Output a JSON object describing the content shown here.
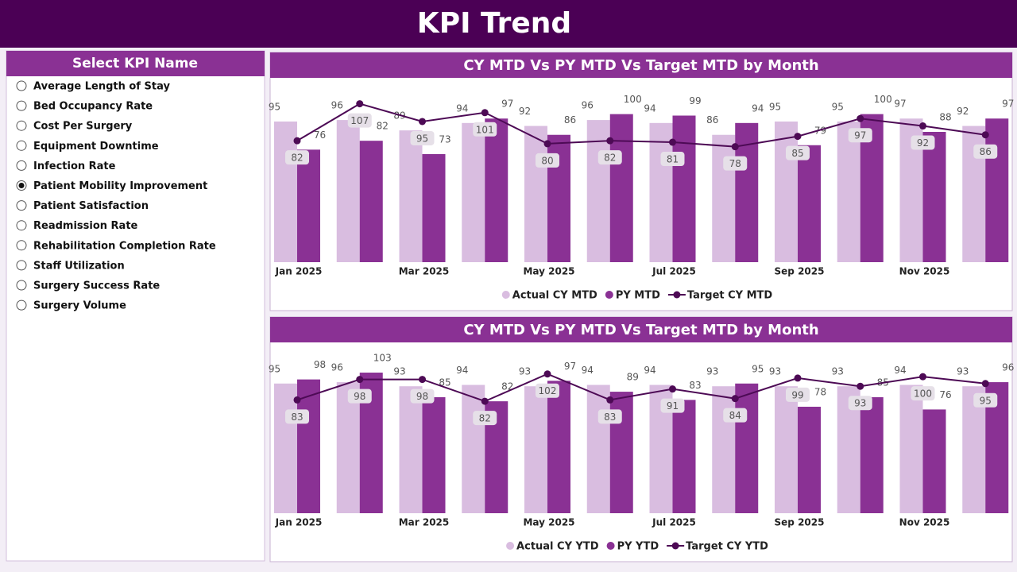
{
  "header": {
    "title": "KPI Trend"
  },
  "slicer": {
    "title": "Select KPI Name",
    "selected": 5,
    "options": [
      "Average Length of Stay",
      "Bed Occupancy Rate",
      "Cost Per Surgery",
      "Equipment Downtime",
      "Infection Rate",
      "Patient Mobility Improvement",
      "Patient Satisfaction",
      "Readmission Rate",
      "Rehabilitation Completion Rate",
      "Staff Utilization",
      "Surgery Success Rate",
      "Surgery Volume"
    ]
  },
  "chart_data": [
    {
      "type": "combo",
      "title": "CY MTD Vs PY MTD Vs Target MTD by Month",
      "categories": [
        "Jan 2025",
        null,
        "Mar 2025",
        null,
        "May 2025",
        null,
        "Jul 2025",
        null,
        "Sep 2025",
        null,
        "Nov 2025",
        null
      ],
      "ylim": [
        0,
        110
      ],
      "series": [
        {
          "name": "Actual CY MTD",
          "color": "#d9bde0",
          "kind": "bar",
          "values": [
            95,
            96,
            89,
            94,
            92,
            96,
            94,
            86,
            95,
            95,
            97,
            92
          ]
        },
        {
          "name": "PY MTD",
          "color": "#8a3194",
          "kind": "bar",
          "values": [
            76,
            82,
            73,
            97,
            86,
            100,
            99,
            94,
            79,
            100,
            88,
            97
          ]
        },
        {
          "name": "Target CY MTD",
          "color": "#4d0a55",
          "kind": "line",
          "values": [
            82,
            107,
            95,
            101,
            80,
            82,
            81,
            78,
            85,
            97,
            92,
            86
          ]
        }
      ]
    },
    {
      "type": "combo",
      "title": "CY MTD Vs PY MTD Vs Target MTD by Month",
      "categories": [
        "Jan 2025",
        null,
        "Mar 2025",
        null,
        "May 2025",
        null,
        "Jul 2025",
        null,
        "Sep 2025",
        null,
        "Nov 2025",
        null
      ],
      "ylim": [
        0,
        110
      ],
      "series": [
        {
          "name": "Actual CY YTD",
          "color": "#d9bde0",
          "kind": "bar",
          "values": [
            95,
            96,
            93,
            94,
            93,
            94,
            94,
            93,
            93,
            93,
            94,
            93
          ]
        },
        {
          "name": "PY YTD",
          "color": "#8a3194",
          "kind": "bar",
          "values": [
            98,
            103,
            85,
            82,
            97,
            89,
            83,
            95,
            78,
            85,
            76,
            96
          ]
        },
        {
          "name": "Target CY YTD",
          "color": "#4d0a55",
          "kind": "line",
          "values": [
            83,
            98,
            98,
            82,
            102,
            83,
            91,
            84,
            99,
            93,
            100,
            95
          ]
        }
      ]
    }
  ]
}
